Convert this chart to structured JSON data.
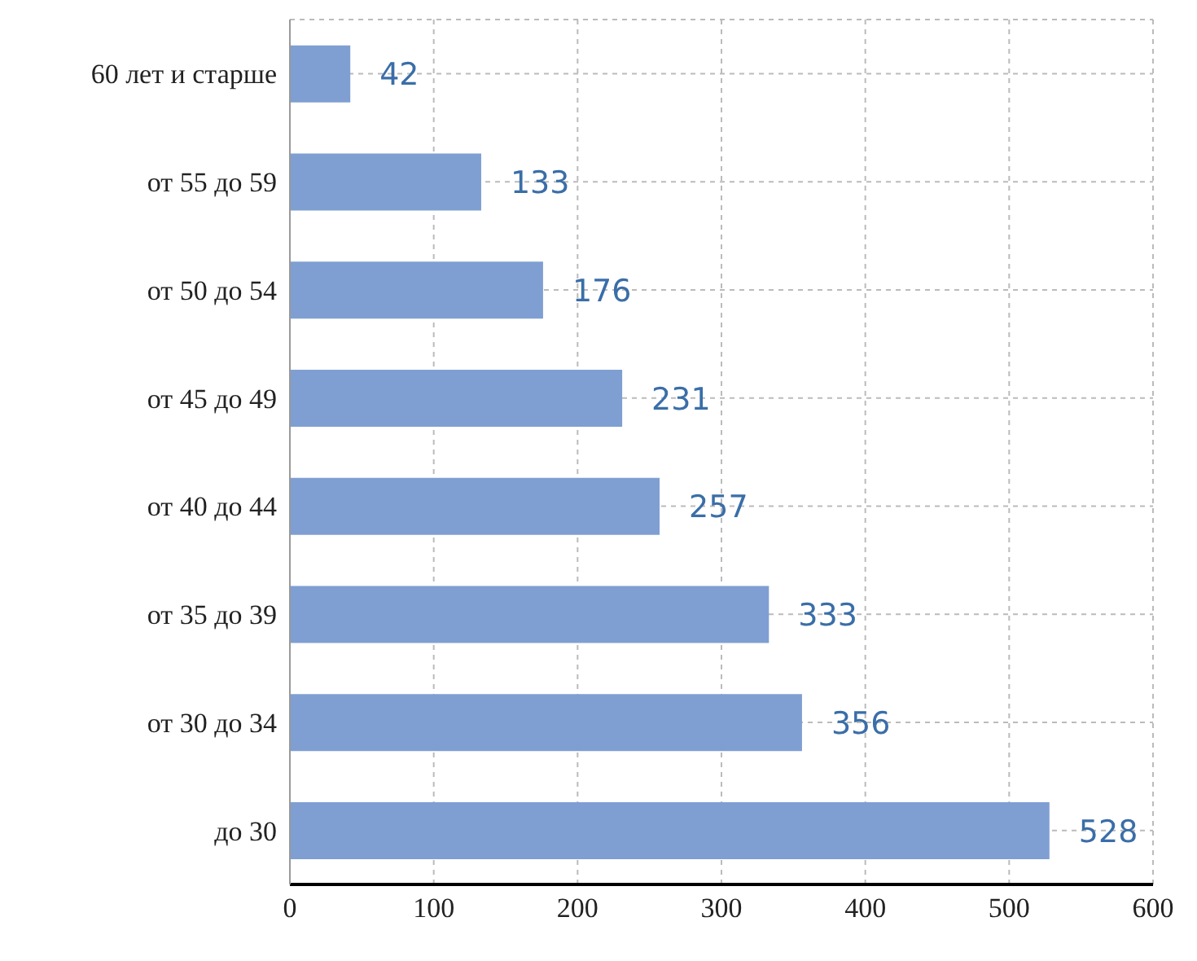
{
  "chart_data": {
    "type": "bar",
    "orientation": "horizontal",
    "categories": [
      "60 лет и старше",
      "от 55 до 59",
      "от 50 до 54",
      "от 45 до 49",
      "от 40 до 44",
      "от 35 до 39",
      "от 30 до 34",
      "до 30"
    ],
    "values": [
      42,
      133,
      176,
      231,
      257,
      333,
      356,
      528
    ],
    "color": "#7f9fd2",
    "xlim": [
      0,
      600
    ],
    "xticks": [
      0,
      100,
      200,
      300,
      400,
      500,
      600
    ],
    "grid": true,
    "data_labels": true
  }
}
